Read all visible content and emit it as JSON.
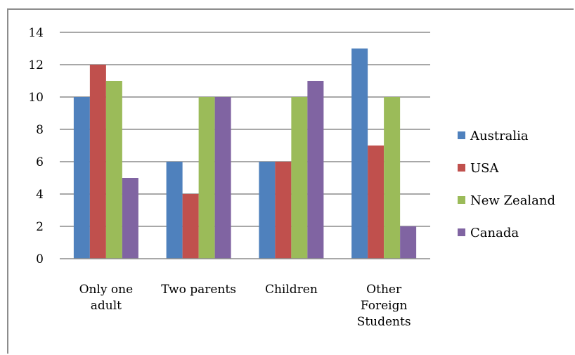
{
  "chart_data": {
    "type": "bar",
    "title": "",
    "xlabel": "",
    "ylabel": "",
    "categories": [
      [
        "Only one",
        "adult"
      ],
      [
        "Two parents"
      ],
      [
        "Children"
      ],
      [
        "Other",
        "Foreign",
        "Students"
      ]
    ],
    "series": [
      {
        "name": "Australia",
        "color": "#4F81BD",
        "values": [
          10,
          6,
          6,
          13
        ]
      },
      {
        "name": "USA",
        "color": "#C0504D",
        "values": [
          12,
          4,
          6,
          7
        ]
      },
      {
        "name": "New Zealand",
        "color": "#9BBB59",
        "values": [
          11,
          10,
          10,
          10
        ]
      },
      {
        "name": "Canada",
        "color": "#8064A2",
        "values": [
          5,
          10,
          11,
          2
        ]
      }
    ],
    "ylim": [
      0,
      14
    ],
    "yticks": [
      0,
      2,
      4,
      6,
      8,
      10,
      12,
      14
    ],
    "grid": true,
    "legend_position": "right"
  }
}
